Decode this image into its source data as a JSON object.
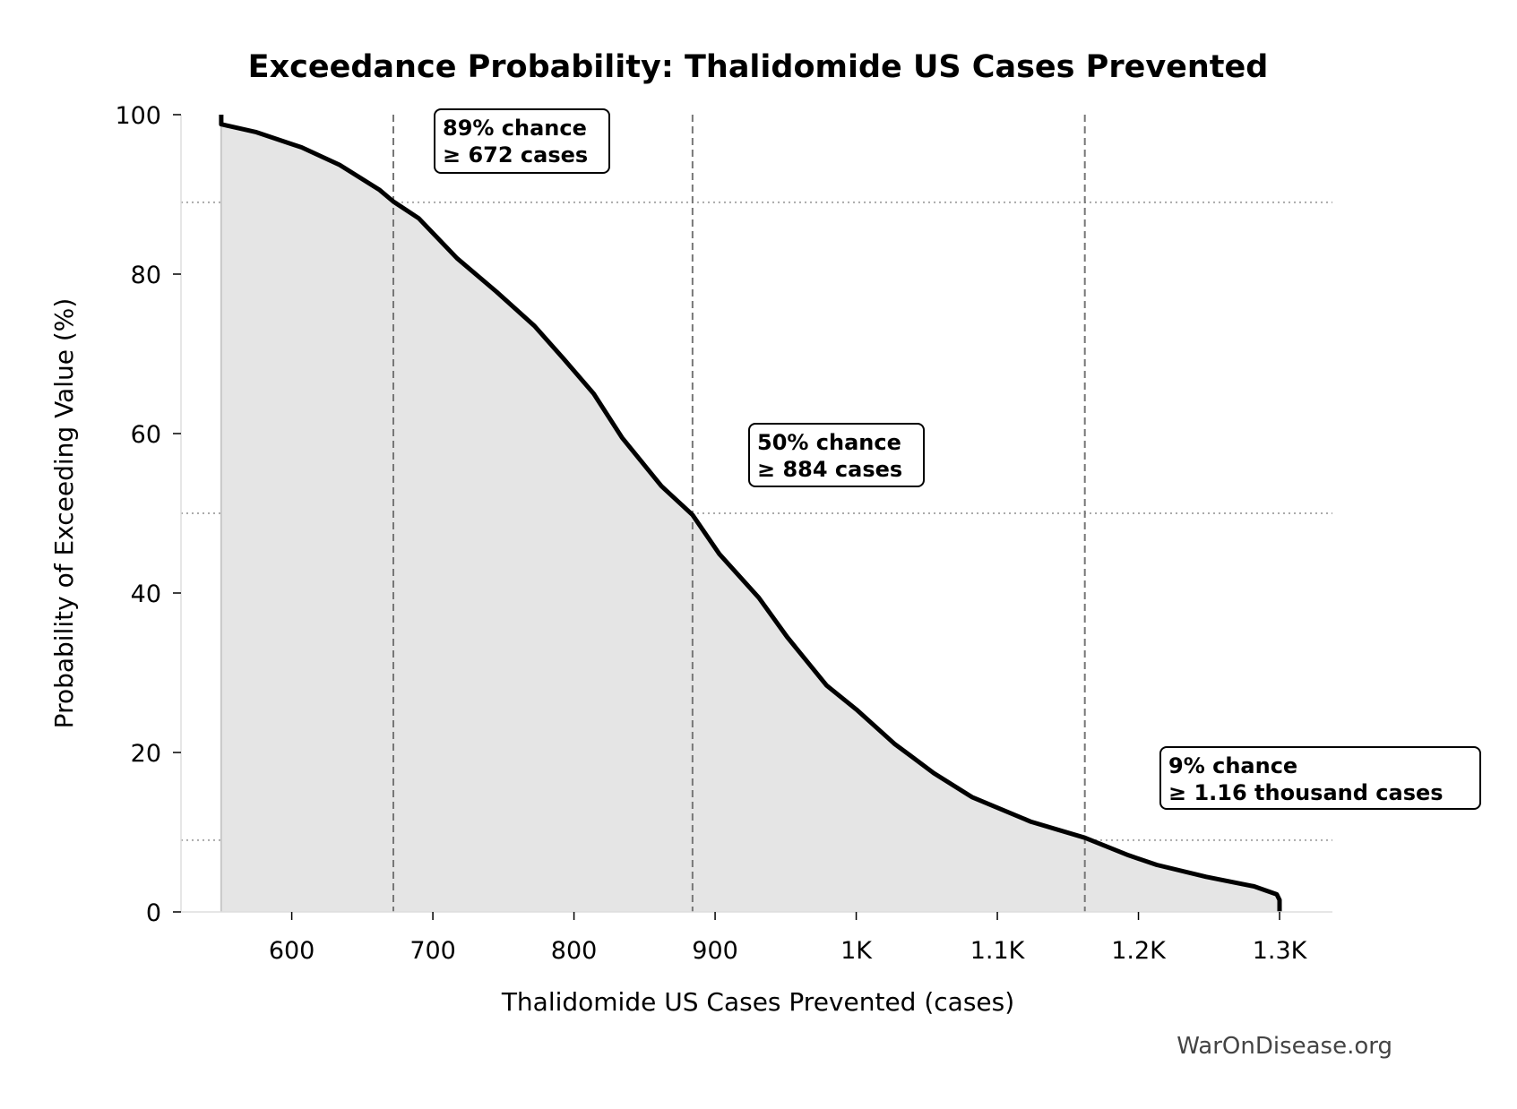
{
  "chart_data": {
    "type": "area",
    "title": "Exceedance Probability: Thalidomide US Cases Prevented",
    "xlabel": "Thalidomide US Cases Prevented (cases)",
    "ylabel": "Probability of Exceeding Value (%)",
    "xlim": [
      525,
      1338
    ],
    "ylim": [
      0,
      100
    ],
    "xticks": [
      600,
      700,
      800,
      900,
      1000,
      1100,
      1200,
      1300
    ],
    "xtick_labels": [
      "600",
      "700",
      "800",
      "900",
      "1K",
      "1.1K",
      "1.2K",
      "1.3K"
    ],
    "yticks": [
      0,
      20,
      40,
      60,
      80,
      100
    ],
    "ytick_labels": [
      "0",
      "20",
      "40",
      "60",
      "80",
      "100"
    ],
    "grid": false,
    "line_color": "#000000",
    "fill_color": "#e5e5e5",
    "series": [
      {
        "x": [
          550,
          550,
          575,
          600,
          607,
          634,
          662,
          672,
          690,
          717,
          745,
          772,
          793,
          814,
          834,
          862,
          884,
          903,
          931,
          951,
          979,
          1000,
          1027,
          1055,
          1082,
          1124,
          1162,
          1193,
          1213,
          1248,
          1282,
          1298,
          1300,
          1300
        ],
        "y": [
          100,
          98.8,
          97.8,
          96.3,
          95.9,
          93.7,
          90.6,
          89.1,
          87,
          82,
          77.8,
          73.5,
          69.3,
          65,
          59.5,
          53.4,
          49.8,
          44.9,
          39.4,
          34.5,
          28.4,
          25.4,
          21.1,
          17.4,
          14.4,
          11.3,
          9.3,
          7.1,
          5.9,
          4.4,
          3.2,
          2.2,
          1.5,
          0
        ]
      }
    ],
    "annotations": [
      {
        "x": 672,
        "p": 89,
        "line1": "89% chance",
        "line2": "≥ 672 cases"
      },
      {
        "x": 884,
        "p": 50,
        "line1": "50% chance",
        "line2": "≥ 884 cases"
      },
      {
        "x": 1162,
        "p": 9,
        "line1": "9% chance",
        "line2": "≥ 1.16 thousand cases"
      }
    ],
    "watermark": "WarOnDisease.org"
  }
}
